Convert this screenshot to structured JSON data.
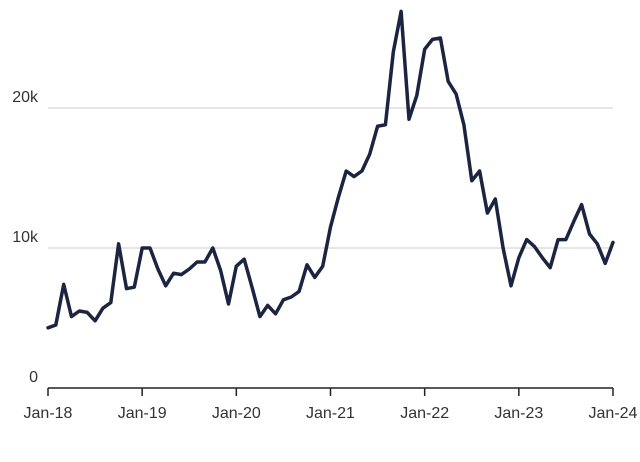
{
  "chart_data": {
    "type": "line",
    "title": "",
    "xlabel": "",
    "ylabel": "",
    "x_ticks": [
      "Jan-18",
      "Jan-19",
      "Jan-20",
      "Jan-21",
      "Jan-22",
      "Jan-23",
      "Jan-24"
    ],
    "y_ticks": [
      "0",
      "10k",
      "20k"
    ],
    "ylim": [
      0,
      27000
    ],
    "xlim": [
      "2018-01",
      "2024-01"
    ],
    "grid": "horizontal",
    "line_color": "#1b2440",
    "series": [
      {
        "points": [
          [
            "2018-01",
            4300
          ],
          [
            "2018-02",
            4500
          ],
          [
            "2018-03",
            7400
          ],
          [
            "2018-04",
            5100
          ],
          [
            "2018-05",
            5500
          ],
          [
            "2018-06",
            5400
          ],
          [
            "2018-07",
            4800
          ],
          [
            "2018-08",
            5700
          ],
          [
            "2018-09",
            6100
          ],
          [
            "2018-10",
            10300
          ],
          [
            "2018-11",
            7100
          ],
          [
            "2018-12",
            7200
          ],
          [
            "2019-01",
            10000
          ],
          [
            "2019-02",
            10000
          ],
          [
            "2019-03",
            8500
          ],
          [
            "2019-04",
            7300
          ],
          [
            "2019-05",
            8200
          ],
          [
            "2019-06",
            8100
          ],
          [
            "2019-07",
            8500
          ],
          [
            "2019-08",
            9000
          ],
          [
            "2019-09",
            9000
          ],
          [
            "2019-10",
            10000
          ],
          [
            "2019-11",
            8400
          ],
          [
            "2019-12",
            6000
          ],
          [
            "2020-01",
            8700
          ],
          [
            "2020-02",
            9200
          ],
          [
            "2020-03",
            7200
          ],
          [
            "2020-04",
            5100
          ],
          [
            "2020-05",
            5900
          ],
          [
            "2020-06",
            5300
          ],
          [
            "2020-07",
            6300
          ],
          [
            "2020-08",
            6500
          ],
          [
            "2020-09",
            6900
          ],
          [
            "2020-10",
            8800
          ],
          [
            "2020-11",
            7900
          ],
          [
            "2020-12",
            8700
          ],
          [
            "2021-01",
            11500
          ],
          [
            "2021-02",
            13600
          ],
          [
            "2021-03",
            15500
          ],
          [
            "2021-04",
            15100
          ],
          [
            "2021-05",
            15500
          ],
          [
            "2021-06",
            16700
          ],
          [
            "2021-07",
            18700
          ],
          [
            "2021-08",
            18800
          ],
          [
            "2021-09",
            24000
          ],
          [
            "2021-10",
            26900
          ],
          [
            "2021-11",
            19200
          ],
          [
            "2021-12",
            20900
          ],
          [
            "2022-01",
            24200
          ],
          [
            "2022-02",
            24900
          ],
          [
            "2022-03",
            25000
          ],
          [
            "2022-04",
            21900
          ],
          [
            "2022-05",
            21000
          ],
          [
            "2022-06",
            18800
          ],
          [
            "2022-07",
            14800
          ],
          [
            "2022-08",
            15500
          ],
          [
            "2022-09",
            12500
          ],
          [
            "2022-10",
            13500
          ],
          [
            "2022-11",
            10000
          ],
          [
            "2022-12",
            7300
          ],
          [
            "2023-01",
            9300
          ],
          [
            "2023-02",
            10600
          ],
          [
            "2023-03",
            10100
          ],
          [
            "2023-04",
            9300
          ],
          [
            "2023-05",
            8600
          ],
          [
            "2023-06",
            10600
          ],
          [
            "2023-07",
            10600
          ],
          [
            "2023-08",
            11900
          ],
          [
            "2023-09",
            13100
          ],
          [
            "2023-10",
            11000
          ],
          [
            "2023-11",
            10300
          ],
          [
            "2023-12",
            8900
          ],
          [
            "2024-01",
            10400
          ]
        ]
      }
    ]
  }
}
